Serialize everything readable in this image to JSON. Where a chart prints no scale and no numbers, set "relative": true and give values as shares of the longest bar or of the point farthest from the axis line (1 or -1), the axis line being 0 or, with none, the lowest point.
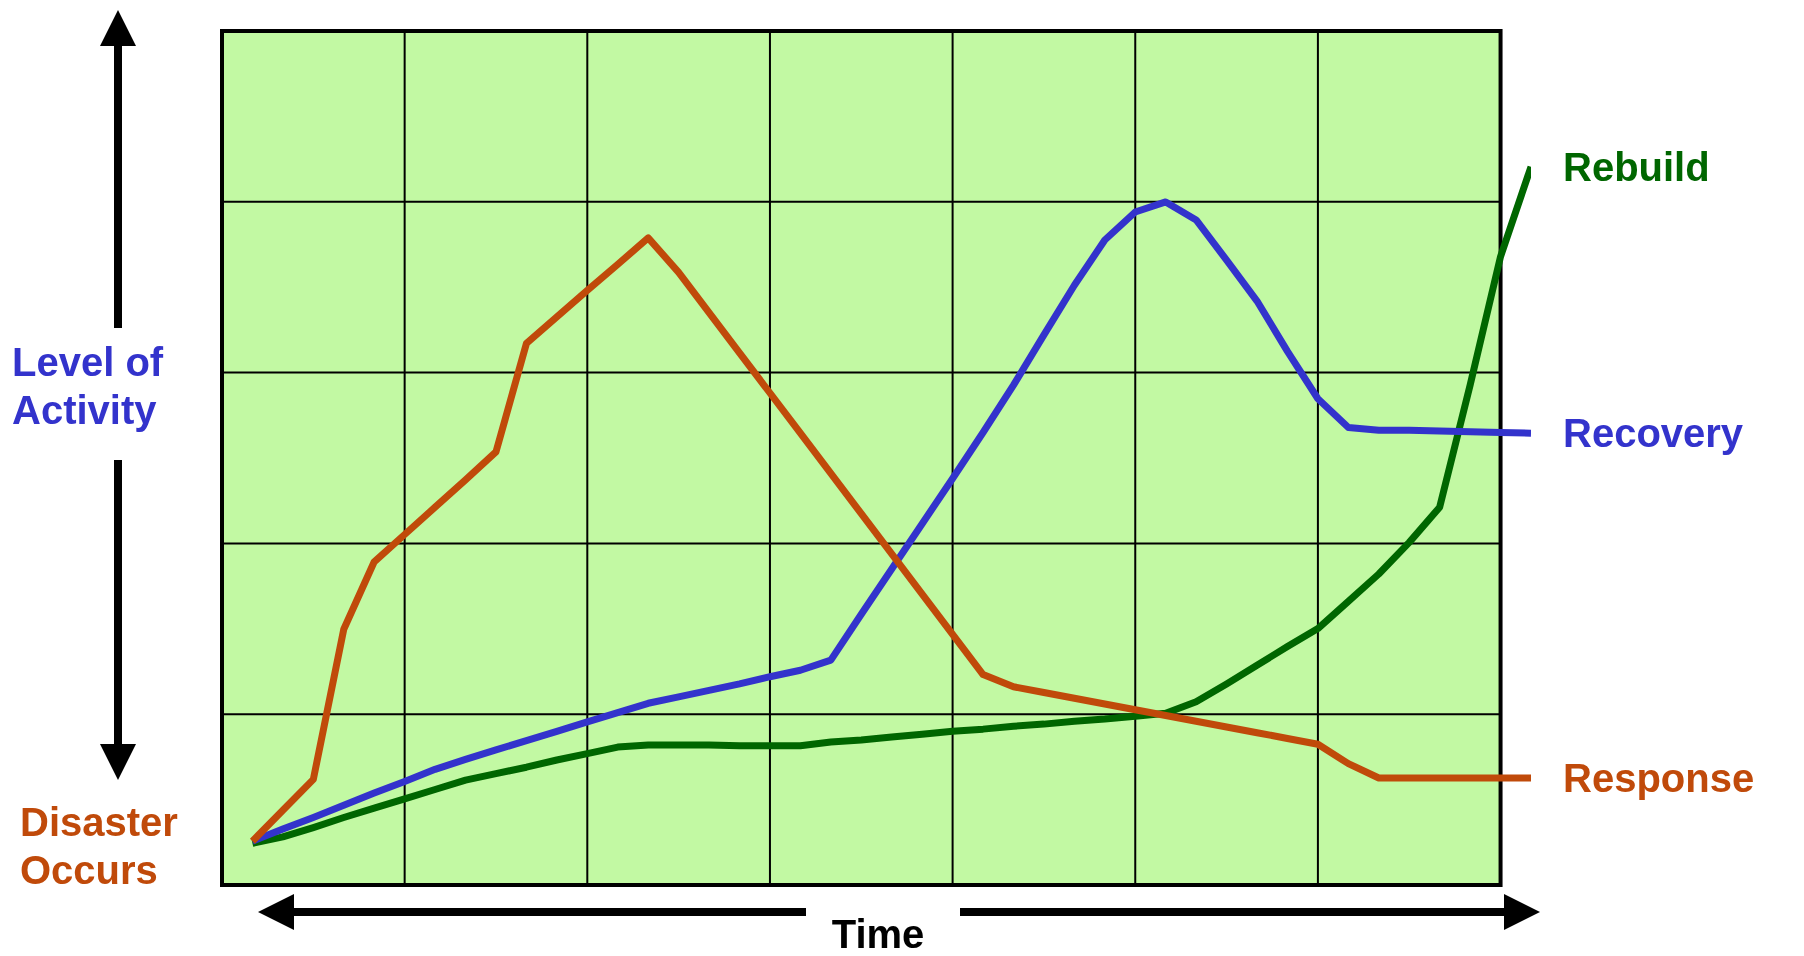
{
  "chart_data": {
    "type": "line",
    "relative": true,
    "xlabel": "Time",
    "ylabel": "Level of Activity",
    "annotations": [
      "Disaster Occurs"
    ],
    "grid": true,
    "marker": "none",
    "line_style": "solid",
    "categories": [
      null,
      null,
      null,
      null,
      null,
      null,
      null,
      null,
      null,
      null,
      null,
      null,
      null,
      null,
      null,
      null,
      null,
      null,
      null,
      null,
      null,
      null,
      null,
      null,
      null,
      null,
      null,
      null,
      null,
      null,
      null,
      null,
      null,
      null,
      null,
      null,
      null,
      null,
      null,
      null,
      null,
      null,
      null
    ],
    "series": [
      {
        "name": "Rebuild",
        "color": "#006600",
        "values": [
          0.058,
          0.067,
          0.08,
          0.094,
          0.107,
          0.12,
          0.133,
          0.146,
          0.155,
          0.164,
          0.174,
          0.183,
          0.192,
          0.195,
          0.195,
          0.195,
          0.194,
          0.194,
          0.194,
          0.199,
          0.202,
          0.206,
          0.21,
          0.214,
          0.217,
          0.221,
          0.224,
          0.228,
          0.231,
          0.235,
          0.239,
          0.255,
          0.28,
          0.306,
          0.332,
          0.357,
          0.395,
          0.433,
          0.477,
          0.526,
          0.696,
          0.875,
          1.0
        ]
      },
      {
        "name": "Recovery",
        "color": "#3333cc",
        "values": [
          0.061,
          0.078,
          0.094,
          0.111,
          0.128,
          0.144,
          0.161,
          0.175,
          0.188,
          0.201,
          0.214,
          0.227,
          0.24,
          0.253,
          0.262,
          0.271,
          0.28,
          0.29,
          0.299,
          0.313,
          0.377,
          0.44,
          0.503,
          0.566,
          0.63,
          0.696,
          0.766,
          0.835,
          0.898,
          0.937,
          0.951,
          0.926,
          0.87,
          0.813,
          0.743,
          0.677,
          0.637,
          0.633,
          0.633,
          0.632,
          0.631,
          0.63,
          0.629
        ]
      },
      {
        "name": "Response",
        "color": "#c04a0a",
        "values": [
          0.061,
          0.104,
          0.147,
          0.356,
          0.45,
          0.488,
          0.526,
          0.564,
          0.603,
          0.754,
          0.791,
          0.828,
          0.864,
          0.901,
          0.853,
          0.797,
          0.741,
          0.685,
          0.629,
          0.573,
          0.517,
          0.461,
          0.405,
          0.349,
          0.293,
          0.276,
          0.268,
          0.26,
          0.252,
          0.244,
          0.236,
          0.228,
          0.22,
          0.212,
          0.204,
          0.196,
          0.169,
          0.149,
          0.149,
          0.149,
          0.149,
          0.149,
          0.149
        ]
      }
    ]
  }
}
